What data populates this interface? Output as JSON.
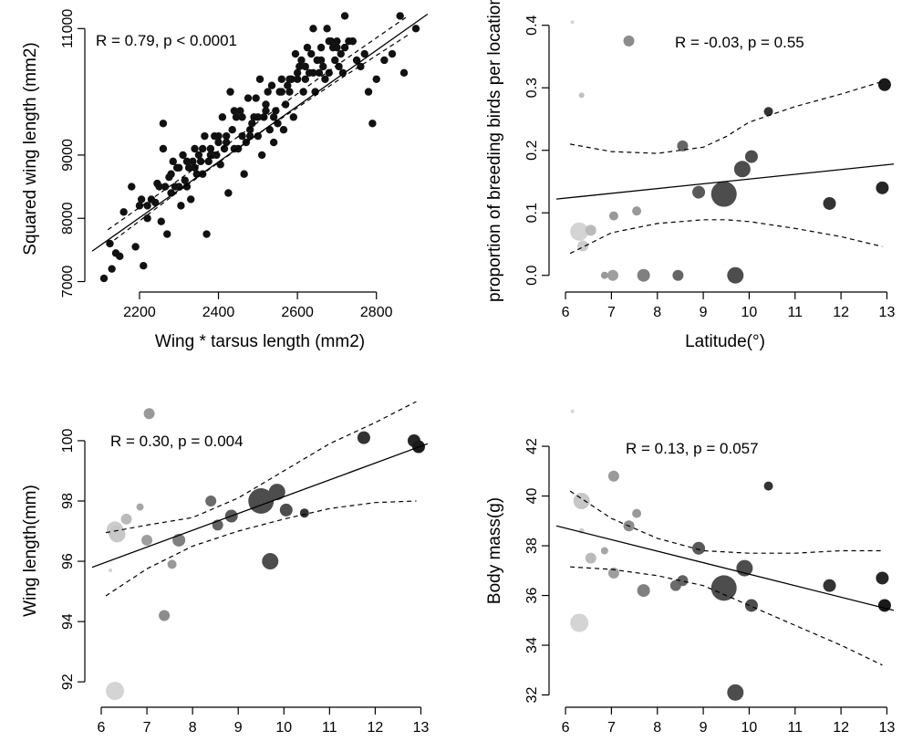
{
  "chart_data": [
    {
      "type": "scatter",
      "annotation": "R = 0.79, p < 0.0001",
      "xlabel": "Wing * tarsus length (mm2)",
      "ylabel": "Squared wing length (mm2)",
      "xlim": [
        2080,
        2930
      ],
      "ylim": [
        6950,
        11250
      ],
      "xticks": [
        2200,
        2400,
        2600,
        2800
      ],
      "yticks": [
        7000,
        8000,
        9000,
        11000
      ],
      "fit": {
        "x": [
          2080,
          2930
        ],
        "y": [
          7480,
          11230
        ]
      },
      "ci_upper": {
        "x": [
          2120,
          2300,
          2500,
          2700,
          2880
        ],
        "y": [
          7820,
          8610,
          9520,
          10420,
          11200
        ]
      },
      "ci_lower": {
        "x": [
          2120,
          2300,
          2500,
          2700,
          2880
        ],
        "y": [
          7580,
          8430,
          9330,
          10170,
          10900
        ]
      },
      "points": {
        "x": [
          2110,
          2125,
          2130,
          2140,
          2150,
          2160,
          2180,
          2190,
          2200,
          2205,
          2210,
          2220,
          2230,
          2240,
          2245,
          2250,
          2255,
          2260,
          2265,
          2270,
          2275,
          2280,
          2285,
          2290,
          2295,
          2300,
          2305,
          2310,
          2315,
          2320,
          2325,
          2330,
          2335,
          2340,
          2345,
          2350,
          2355,
          2360,
          2365,
          2370,
          2375,
          2380,
          2385,
          2390,
          2395,
          2400,
          2405,
          2410,
          2415,
          2420,
          2425,
          2430,
          2435,
          2440,
          2445,
          2450,
          2455,
          2460,
          2465,
          2470,
          2475,
          2480,
          2485,
          2490,
          2495,
          2500,
          2505,
          2510,
          2515,
          2520,
          2525,
          2530,
          2535,
          2540,
          2545,
          2550,
          2555,
          2560,
          2565,
          2570,
          2575,
          2580,
          2585,
          2590,
          2595,
          2600,
          2605,
          2610,
          2615,
          2620,
          2625,
          2630,
          2635,
          2640,
          2645,
          2650,
          2655,
          2660,
          2665,
          2670,
          2675,
          2680,
          2685,
          2690,
          2695,
          2700,
          2705,
          2710,
          2715,
          2720,
          2730,
          2740,
          2750,
          2760,
          2770,
          2780,
          2790,
          2800,
          2820,
          2840,
          2860,
          2870,
          2900,
          2220,
          2260,
          2300,
          2340,
          2380,
          2420,
          2460,
          2500,
          2540,
          2580,
          2620,
          2660,
          2700,
          2740,
          2280,
          2320,
          2360,
          2400,
          2440,
          2480,
          2520,
          2560,
          2600,
          2640,
          2680,
          2720
        ],
        "y": [
          7050,
          7600,
          7200,
          7450,
          7400,
          8100,
          8500,
          7550,
          8200,
          8300,
          7250,
          8000,
          8300,
          8250,
          8550,
          8500,
          7950,
          9500,
          8500,
          7750,
          8650,
          8400,
          8900,
          8500,
          8800,
          8800,
          8200,
          9000,
          8600,
          8900,
          8800,
          8300,
          8900,
          9100,
          8700,
          9000,
          8900,
          8700,
          9300,
          7750,
          8900,
          9100,
          9000,
          9300,
          9000,
          9200,
          8850,
          9600,
          9100,
          9300,
          8400,
          10000,
          9400,
          9100,
          9600,
          9100,
          9700,
          9600,
          8700,
          9200,
          9900,
          9300,
          9500,
          9600,
          9900,
          9600,
          10200,
          9000,
          9600,
          9800,
          10000,
          9400,
          10100,
          9200,
          9700,
          9500,
          10000,
          10200,
          9400,
          9800,
          10100,
          10000,
          10200,
          9600,
          10600,
          10300,
          10400,
          10500,
          10000,
          10200,
          10700,
          10300,
          10600,
          11000,
          10000,
          10500,
          10300,
          10700,
          10400,
          10200,
          11000,
          10300,
          10800,
          10700,
          10500,
          10800,
          10400,
          10600,
          10300,
          11200,
          10800,
          10800,
          10500,
          10400,
          10600,
          10000,
          9500,
          10200,
          10500,
          10600,
          11200,
          10300,
          11000,
          8200,
          9100,
          8500,
          8800,
          9000,
          9200,
          9300,
          9300,
          9600,
          10200,
          10400,
          10500,
          10700,
          10800,
          8700,
          8500,
          9100,
          9300,
          9700,
          9400,
          9700,
          10000,
          10200,
          10300,
          10800,
          10700
        ]
      }
    },
    {
      "type": "scatter",
      "annotation": "R = -0.03, p = 0.55",
      "xlabel": "Latitude(°)",
      "ylabel": "proportion of breeding birds per location",
      "xlim": [
        5.8,
        13.15
      ],
      "ylim": [
        -0.015,
        0.42
      ],
      "xticks": [
        6,
        7,
        8,
        9,
        10,
        11,
        12,
        13
      ],
      "yticks": [
        0.0,
        0.1,
        0.2,
        0.3,
        0.4
      ],
      "fit": {
        "x": [
          5.8,
          13.15
        ],
        "y": [
          0.122,
          0.178
        ]
      },
      "ci_upper": {
        "x": [
          6.1,
          7.0,
          8.0,
          9.0,
          9.5,
          10.0,
          11.0,
          12.0,
          12.9
        ],
        "y": [
          0.21,
          0.198,
          0.195,
          0.205,
          0.222,
          0.245,
          0.27,
          0.29,
          0.31
        ]
      },
      "ci_lower": {
        "x": [
          6.1,
          7.0,
          8.0,
          9.0,
          9.5,
          10.0,
          11.0,
          12.0,
          12.9
        ],
        "y": [
          0.035,
          0.068,
          0.083,
          0.089,
          0.089,
          0.086,
          0.075,
          0.062,
          0.046
        ]
      },
      "points": {
        "x": [
          6.15,
          6.35,
          6.3,
          6.38,
          6.55,
          7.05,
          7.38,
          7.55,
          6.85,
          7.03,
          7.7,
          8.45,
          8.55,
          8.9,
          9.45,
          9.7,
          9.85,
          10.05,
          10.42,
          11.75,
          12.9,
          12.95
        ],
        "y": [
          0.405,
          0.288,
          0.07,
          0.047,
          0.072,
          0.095,
          0.375,
          0.103,
          0.0,
          0.0,
          0.0,
          0.0,
          0.207,
          0.133,
          0.13,
          0.0,
          0.17,
          0.19,
          0.262,
          0.115,
          0.14,
          0.305
        ],
        "size": [
          2,
          3,
          10,
          6,
          6,
          5,
          6,
          5,
          4,
          6,
          7,
          6,
          6,
          7,
          14,
          9,
          9,
          7,
          5,
          7,
          7,
          7
        ],
        "shade": [
          0.83,
          0.75,
          0.83,
          0.8,
          0.73,
          0.6,
          0.55,
          0.6,
          0.6,
          0.62,
          0.5,
          0.4,
          0.4,
          0.35,
          0.3,
          0.3,
          0.3,
          0.3,
          0.2,
          0.2,
          0.15,
          0.1
        ]
      }
    },
    {
      "type": "scatter",
      "annotation": "R = 0.30, p = 0.004",
      "xlabel": "Latitude(°)",
      "ylabel": "Wing length(mm)",
      "xlim": [
        5.8,
        13.15
      ],
      "ylim": [
        91.4,
        101.3
      ],
      "xticks": [
        6,
        7,
        8,
        9,
        10,
        11,
        12,
        13
      ],
      "yticks": [
        92,
        94,
        96,
        98,
        100
      ],
      "fit": {
        "x": [
          5.8,
          13.15
        ],
        "y": [
          95.8,
          99.9
        ]
      },
      "ci_upper": {
        "x": [
          6.1,
          7.0,
          8.0,
          9.0,
          10.0,
          11.0,
          12.0,
          12.9
        ],
        "y": [
          96.95,
          97.2,
          97.45,
          98.1,
          99.0,
          99.9,
          100.6,
          101.3
        ]
      },
      "ci_lower": {
        "x": [
          6.1,
          7.0,
          8.0,
          9.0,
          10.0,
          11.0,
          12.0,
          12.9
        ],
        "y": [
          94.85,
          95.75,
          96.5,
          97.0,
          97.4,
          97.75,
          97.95,
          98.0
        ]
      },
      "points": {
        "x": [
          6.2,
          6.3,
          6.35,
          6.55,
          6.85,
          7.0,
          7.05,
          7.38,
          7.55,
          7.7,
          8.4,
          8.55,
          8.85,
          9.5,
          9.85,
          9.7,
          10.05,
          10.45,
          11.75,
          12.85,
          12.95,
          6.3
        ],
        "y": [
          95.7,
          97.05,
          96.9,
          97.4,
          97.8,
          96.7,
          100.9,
          94.2,
          95.9,
          96.7,
          98.0,
          97.2,
          97.5,
          98.0,
          98.3,
          96.0,
          97.7,
          97.6,
          100.1,
          100.0,
          99.8,
          91.7
        ],
        "size": [
          2,
          9,
          9,
          6,
          4,
          6,
          6,
          6,
          5,
          7,
          6,
          6,
          7,
          14,
          9,
          9,
          7,
          5,
          7,
          7,
          7,
          10
        ],
        "shade": [
          0.83,
          0.8,
          0.78,
          0.73,
          0.65,
          0.62,
          0.6,
          0.55,
          0.6,
          0.5,
          0.42,
          0.38,
          0.35,
          0.3,
          0.3,
          0.3,
          0.3,
          0.2,
          0.2,
          0.15,
          0.1,
          0.83
        ]
      }
    },
    {
      "type": "scatter",
      "annotation": "R = 0.13, p = 0.057",
      "xlabel": "Latitude(°)",
      "ylabel": "Body mass(g)",
      "xlim": [
        5.8,
        13.15
      ],
      "ylim": [
        31.8,
        43.8
      ],
      "xticks": [
        6,
        7,
        8,
        9,
        10,
        11,
        12,
        13
      ],
      "yticks": [
        32,
        34,
        36,
        38,
        40,
        42
      ],
      "fit": {
        "x": [
          5.8,
          13.15
        ],
        "y": [
          38.8,
          35.4
        ]
      },
      "ci_upper": {
        "x": [
          6.1,
          7.0,
          8.0,
          9.0,
          10.0,
          11.0,
          12.0,
          12.9
        ],
        "y": [
          40.2,
          39.1,
          38.3,
          37.8,
          37.7,
          37.7,
          37.8,
          37.8
        ]
      },
      "ci_lower": {
        "x": [
          6.1,
          7.0,
          8.0,
          9.0,
          10.0,
          11.0,
          12.0,
          12.9
        ],
        "y": [
          37.15,
          37.05,
          36.8,
          36.4,
          35.6,
          34.8,
          34.0,
          33.2
        ]
      },
      "points": {
        "x": [
          6.15,
          6.35,
          6.35,
          6.55,
          6.85,
          7.05,
          7.05,
          7.38,
          7.55,
          7.7,
          8.4,
          8.55,
          8.9,
          9.45,
          9.9,
          9.7,
          10.05,
          10.42,
          11.75,
          12.9,
          12.95,
          6.3
        ],
        "y": [
          43.4,
          38.6,
          39.8,
          37.5,
          37.8,
          36.9,
          40.8,
          38.8,
          39.3,
          36.2,
          36.4,
          36.6,
          37.9,
          36.3,
          37.1,
          32.1,
          35.6,
          40.4,
          36.4,
          36.7,
          35.6,
          34.9
        ],
        "size": [
          2,
          3,
          9,
          6,
          4,
          6,
          6,
          6,
          5,
          7,
          6,
          6,
          7,
          14,
          9,
          9,
          7,
          5,
          7,
          7,
          7,
          10
        ],
        "shade": [
          0.83,
          0.8,
          0.78,
          0.73,
          0.65,
          0.62,
          0.6,
          0.55,
          0.6,
          0.5,
          0.42,
          0.38,
          0.35,
          0.3,
          0.3,
          0.3,
          0.3,
          0.2,
          0.2,
          0.15,
          0.1,
          0.83
        ]
      }
    }
  ]
}
